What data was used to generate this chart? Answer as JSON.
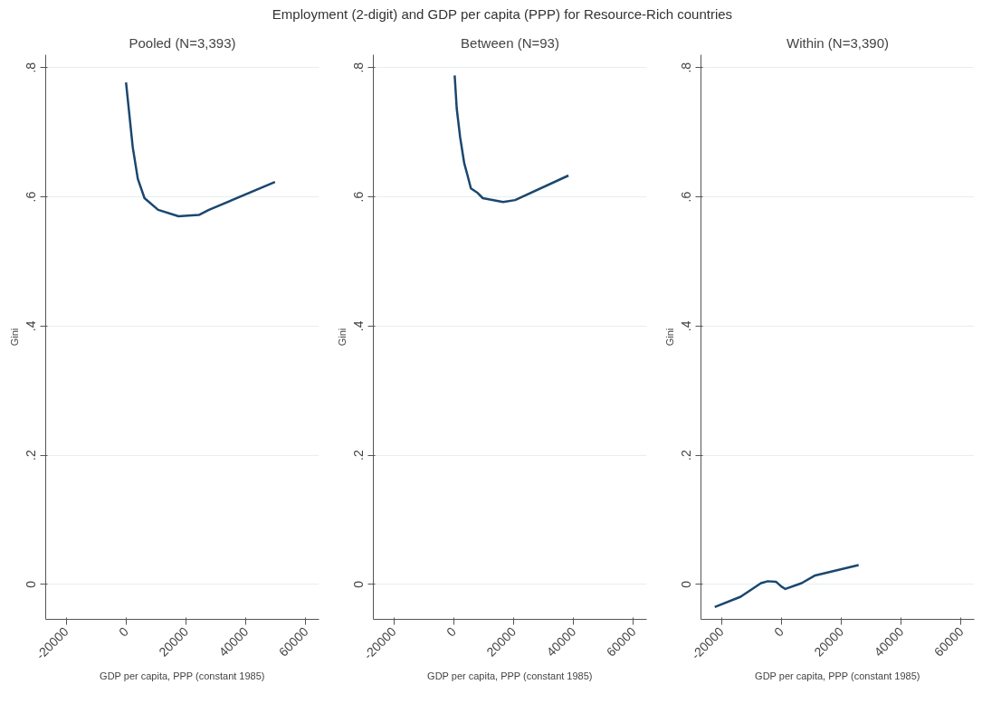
{
  "chart_data": [
    {
      "type": "line",
      "title": "Pooled (N=3,393)",
      "xlabel": "GDP per capita, PPP (constant 1985)",
      "ylabel": "Gini",
      "annotations": [
        "Employment (2-digit) and GDP per capita (PPP) for Resource-Rich countries"
      ],
      "series": [
        {
          "color": "#1a476f",
          "x": [
            0,
            1120,
            2240,
            3930,
            6170,
            10700,
            17500,
            24300,
            27700,
            49700
          ],
          "values": [
            0.777,
            0.727,
            0.677,
            0.628,
            0.598,
            0.58,
            0.57,
            0.572,
            0.58,
            0.623
          ]
        }
      ],
      "xlim": [
        -26800,
        64400
      ],
      "ylim": [
        -0.054,
        0.82
      ],
      "xticks": [
        -20000,
        0,
        20000,
        40000,
        60000
      ],
      "yticks": [
        {
          "value": 0,
          "label": "0"
        },
        {
          "value": 0.2,
          "label": ".2"
        },
        {
          "value": 0.4,
          "label": ".4"
        },
        {
          "value": 0.6,
          "label": ".6"
        },
        {
          "value": 0.8,
          "label": ".8"
        }
      ],
      "grid": "y",
      "marker": "none",
      "line_style": "solid"
    },
    {
      "type": "line",
      "title": "Between (N=93)",
      "xlabel": "GDP per capita, PPP (constant 1985)",
      "ylabel": "Gini",
      "series": [
        {
          "color": "#1a476f",
          "x": [
            340,
            1020,
            2170,
            3530,
            4640,
            5760,
            8030,
            9730,
            16500,
            20500,
            38300
          ],
          "values": [
            0.788,
            0.737,
            0.692,
            0.652,
            0.633,
            0.613,
            0.606,
            0.598,
            0.592,
            0.595,
            0.633
          ]
        }
      ],
      "xlim": [
        -26800,
        64400
      ],
      "ylim": [
        -0.054,
        0.82
      ],
      "xticks": [
        -20000,
        0,
        20000,
        40000,
        60000
      ],
      "yticks": [
        {
          "value": 0,
          "label": "0"
        },
        {
          "value": 0.2,
          "label": ".2"
        },
        {
          "value": 0.4,
          "label": ".4"
        },
        {
          "value": 0.6,
          "label": ".6"
        },
        {
          "value": 0.8,
          "label": ".8"
        }
      ],
      "grid": "y",
      "marker": "none",
      "line_style": "solid"
    },
    {
      "type": "line",
      "title": "Within (N=3,390)",
      "xlabel": "GDP per capita, PPP (constant 1985)",
      "ylabel": "Gini",
      "series": [
        {
          "color": "#1a476f",
          "x": [
            -22200,
            -13560,
            -6780,
            -4520,
            -1700,
            0,
            1360,
            6780,
            11300,
            25800
          ],
          "values": [
            -0.035,
            -0.019,
            0.002,
            0.005,
            0.004,
            -0.003,
            -0.007,
            0.002,
            0.014,
            0.03
          ]
        }
      ],
      "xlim": [
        -26800,
        64400
      ],
      "ylim": [
        -0.054,
        0.82
      ],
      "xticks": [
        -20000,
        0,
        20000,
        40000,
        60000
      ],
      "yticks": [
        {
          "value": 0,
          "label": "0"
        },
        {
          "value": 0.2,
          "label": ".2"
        },
        {
          "value": 0.4,
          "label": ".4"
        },
        {
          "value": 0.6,
          "label": ".6"
        },
        {
          "value": 0.8,
          "label": ".8"
        }
      ],
      "grid": "y",
      "marker": "none",
      "line_style": "solid"
    }
  ]
}
